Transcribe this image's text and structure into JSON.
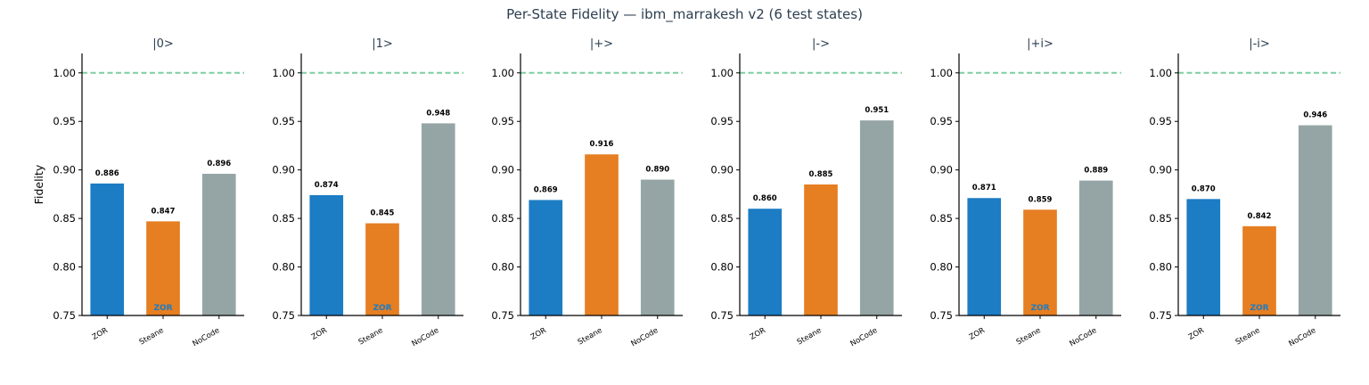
{
  "chart_data": [
    {
      "type": "bar",
      "title": "|0>",
      "categories": [
        "ZOR",
        "Steane",
        "NoCode"
      ],
      "values": [
        0.886,
        0.847,
        0.896
      ],
      "labels": [
        "0.886",
        "0.847",
        "0.896"
      ],
      "ylabel": "Fidelity",
      "ylim": [
        0.75,
        1.02
      ],
      "yticks": [
        "0.75",
        "0.80",
        "0.85",
        "0.90",
        "0.95",
        "1.00"
      ],
      "reference_line": 1.0,
      "annotation": "ZOR"
    },
    {
      "type": "bar",
      "title": "|1>",
      "categories": [
        "ZOR",
        "Steane",
        "NoCode"
      ],
      "values": [
        0.874,
        0.845,
        0.948
      ],
      "labels": [
        "0.874",
        "0.845",
        "0.948"
      ],
      "ylabel": "",
      "ylim": [
        0.75,
        1.02
      ],
      "yticks": [
        "0.75",
        "0.80",
        "0.85",
        "0.90",
        "0.95",
        "1.00"
      ],
      "reference_line": 1.0,
      "annotation": "ZOR"
    },
    {
      "type": "bar",
      "title": "|+>",
      "categories": [
        "ZOR",
        "Steane",
        "NoCode"
      ],
      "values": [
        0.869,
        0.916,
        0.89
      ],
      "labels": [
        "0.869",
        "0.916",
        "0.890"
      ],
      "ylabel": "",
      "ylim": [
        0.75,
        1.02
      ],
      "yticks": [
        "0.75",
        "0.80",
        "0.85",
        "0.90",
        "0.95",
        "1.00"
      ],
      "reference_line": 1.0,
      "annotation": ""
    },
    {
      "type": "bar",
      "title": "|->",
      "categories": [
        "ZOR",
        "Steane",
        "NoCode"
      ],
      "values": [
        0.86,
        0.885,
        0.951
      ],
      "labels": [
        "0.860",
        "0.885",
        "0.951"
      ],
      "ylabel": "",
      "ylim": [
        0.75,
        1.02
      ],
      "yticks": [
        "0.75",
        "0.80",
        "0.85",
        "0.90",
        "0.95",
        "1.00"
      ],
      "reference_line": 1.0,
      "annotation": ""
    },
    {
      "type": "bar",
      "title": "|+i>",
      "categories": [
        "ZOR",
        "Steane",
        "NoCode"
      ],
      "values": [
        0.871,
        0.859,
        0.889
      ],
      "labels": [
        "0.871",
        "0.859",
        "0.889"
      ],
      "ylabel": "",
      "ylim": [
        0.75,
        1.02
      ],
      "yticks": [
        "0.75",
        "0.80",
        "0.85",
        "0.90",
        "0.95",
        "1.00"
      ],
      "reference_line": 1.0,
      "annotation": "ZOR"
    },
    {
      "type": "bar",
      "title": "|-i>",
      "categories": [
        "ZOR",
        "Steane",
        "NoCode"
      ],
      "values": [
        0.87,
        0.842,
        0.946
      ],
      "labels": [
        "0.870",
        "0.842",
        "0.946"
      ],
      "ylabel": "",
      "ylim": [
        0.75,
        1.02
      ],
      "yticks": [
        "0.75",
        "0.80",
        "0.85",
        "0.90",
        "0.95",
        "1.00"
      ],
      "reference_line": 1.0,
      "annotation": "ZOR"
    }
  ],
  "suptitle": "Per-State Fidelity — ibm_marrakesh v2 (6 test states)",
  "colors": {
    "ZOR": "#1c7cc4",
    "Steane": "#e67e22",
    "NoCode": "#95a5a6",
    "reference": "#7dcea0",
    "title": "#2c3e50",
    "annotation": "#1c7cc4"
  }
}
